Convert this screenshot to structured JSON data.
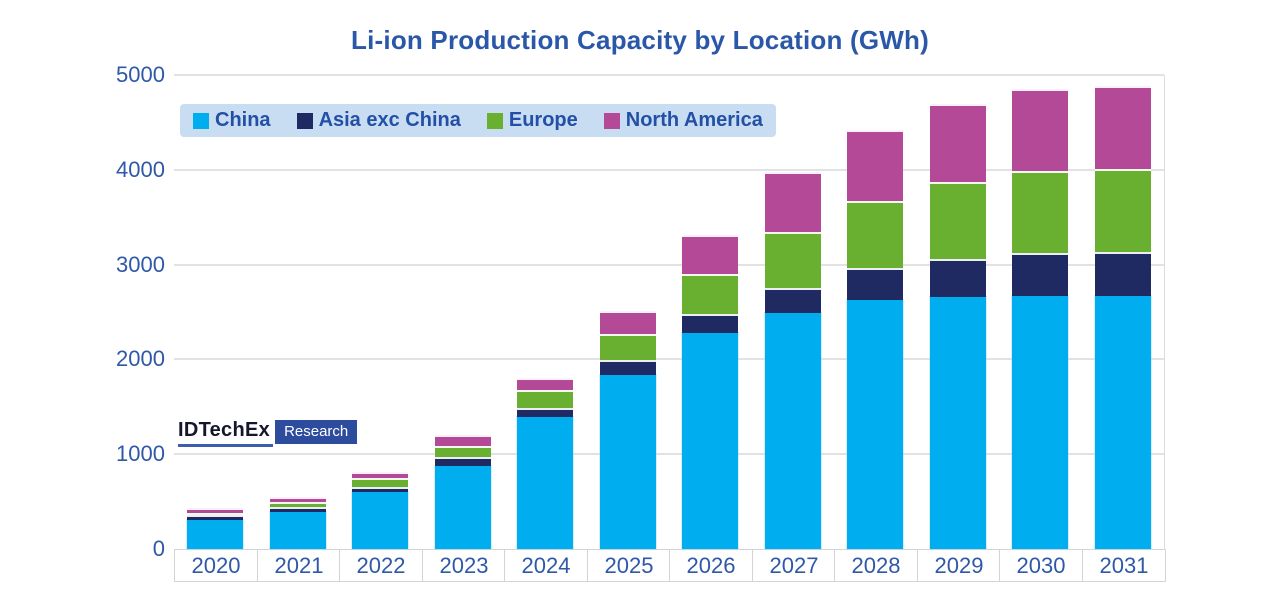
{
  "title": "Li-ion Production Capacity by Location (GWh)",
  "logo": {
    "brand": "IDTechEx",
    "tag": "Research"
  },
  "legend": {
    "background": "#c9ddf2",
    "items": [
      {
        "label": "China",
        "color": "#00aeef"
      },
      {
        "label": "Asia exc China",
        "color": "#1f2a63"
      },
      {
        "label": "Europe",
        "color": "#69af30"
      },
      {
        "label": "North America",
        "color": "#b44a97"
      }
    ]
  },
  "colors": {
    "title_text": "#2b57a8",
    "axis_text": "#2f58a8",
    "gridline": "#e2e2e6",
    "axis_border": "#d4d4d4"
  },
  "chart_data": {
    "type": "bar",
    "stacked": true,
    "title": "Li-ion Production Capacity by Location (GWh)",
    "unit": "GWh",
    "categories": [
      "2020",
      "2021",
      "2022",
      "2023",
      "2024",
      "2025",
      "2026",
      "2027",
      "2028",
      "2029",
      "2030",
      "2031"
    ],
    "series": [
      {
        "name": "China",
        "color": "#00aeef",
        "values": [
          310,
          395,
          600,
          880,
          1390,
          1840,
          2275,
          2490,
          2630,
          2660,
          2670,
          2670
        ]
      },
      {
        "name": "Asia exc China",
        "color": "#1f2a63",
        "values": [
          45,
          50,
          55,
          90,
          100,
          155,
          200,
          265,
          330,
          395,
          455,
          465
        ]
      },
      {
        "name": "Europe",
        "color": "#69af30",
        "values": [
          30,
          50,
          95,
          115,
          190,
          275,
          425,
          585,
          710,
          815,
          865,
          870
        ]
      },
      {
        "name": "North America",
        "color": "#b44a97",
        "values": [
          45,
          50,
          65,
          115,
          120,
          240,
          410,
          635,
          755,
          820,
          860,
          875
        ]
      }
    ],
    "totals": [
      430,
      545,
      815,
      1200,
      1800,
      2510,
      3310,
      3975,
      4425,
      4690,
      4850,
      4880
    ],
    "ylim": [
      0,
      5000
    ],
    "y_ticks": [
      0,
      1000,
      2000,
      3000,
      4000,
      5000
    ],
    "grid": true,
    "legend_position": "top-left"
  }
}
